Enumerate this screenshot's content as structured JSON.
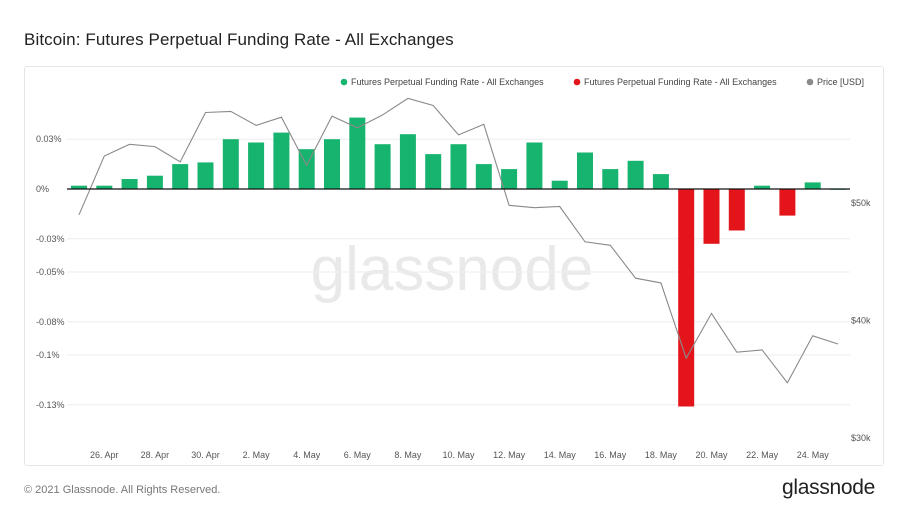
{
  "title": "Bitcoin: Futures Perpetual Funding Rate - All Exchanges",
  "watermark": "glassnode",
  "footer": {
    "copyright": "© 2021 Glassnode. All Rights Reserved.",
    "brand": "glassnode"
  },
  "colors": {
    "positive": "#16b46f",
    "negative": "#e3151a",
    "price": "#8a8a8a"
  },
  "chart_data": {
    "type": "bar",
    "title": "Bitcoin: Futures Perpetual Funding Rate - All Exchanges",
    "legend": [
      {
        "label": "Futures Perpetual Funding Rate - All Exchanges",
        "color": "#16b46f"
      },
      {
        "label": "Futures Perpetual Funding Rate - All Exchanges",
        "color": "#e3151a"
      },
      {
        "label": "Price [USD]",
        "color": "#8a8a8a"
      }
    ],
    "legend_position": "top-right",
    "x_tick_labels": [
      "26. Apr",
      "28. Apr",
      "30. Apr",
      "2. May",
      "4. May",
      "6. May",
      "8. May",
      "10. May",
      "12. May",
      "14. May",
      "16. May",
      "18. May",
      "20. May",
      "22. May",
      "24. May"
    ],
    "y_left": {
      "ticks": [
        0.03,
        0,
        -0.03,
        -0.05,
        -0.08,
        -0.1,
        -0.13
      ],
      "tick_labels": [
        "0.03%",
        "0%",
        "-0.03%",
        "-0.05%",
        "-0.08%",
        "-0.1%",
        "-0.13%"
      ],
      "range": [
        -0.13,
        0.05
      ]
    },
    "y_right": {
      "tick_values": [
        50000,
        40000,
        30000
      ],
      "tick_labels": [
        "$50k",
        "$40k",
        "$30k"
      ],
      "range": [
        30000,
        58000
      ]
    },
    "funding_rate_series": {
      "name": "Futures Perpetual Funding Rate - All Exchanges",
      "unit": "%",
      "dates": [
        "2021-04-25",
        "2021-04-26",
        "2021-04-27",
        "2021-04-28",
        "2021-04-29",
        "2021-04-30",
        "2021-05-01",
        "2021-05-02",
        "2021-05-03",
        "2021-05-04",
        "2021-05-05",
        "2021-05-06",
        "2021-05-07",
        "2021-05-08",
        "2021-05-09",
        "2021-05-10",
        "2021-05-11",
        "2021-05-12",
        "2021-05-13",
        "2021-05-14",
        "2021-05-15",
        "2021-05-16",
        "2021-05-17",
        "2021-05-18",
        "2021-05-19",
        "2021-05-20",
        "2021-05-21",
        "2021-05-22",
        "2021-05-23",
        "2021-05-24",
        "2021-05-25"
      ],
      "values": [
        0.002,
        0.002,
        0.006,
        0.008,
        0.015,
        0.016,
        0.03,
        0.028,
        0.034,
        0.024,
        0.03,
        0.043,
        0.027,
        0.033,
        0.021,
        0.027,
        0.015,
        0.012,
        0.028,
        0.005,
        0.022,
        0.012,
        0.017,
        0.009,
        -0.131,
        -0.033,
        -0.025,
        0.002,
        -0.016,
        0.004,
        0.0
      ]
    },
    "price_series": {
      "name": "Price [USD]",
      "dates": [
        "2021-04-25",
        "2021-04-26",
        "2021-04-27",
        "2021-04-28",
        "2021-04-29",
        "2021-04-30",
        "2021-05-01",
        "2021-05-02",
        "2021-05-03",
        "2021-05-04",
        "2021-05-05",
        "2021-05-06",
        "2021-05-07",
        "2021-05-08",
        "2021-05-09",
        "2021-05-10",
        "2021-05-11",
        "2021-05-12",
        "2021-05-13",
        "2021-05-14",
        "2021-05-15",
        "2021-05-16",
        "2021-05-17",
        "2021-05-18",
        "2021-05-19",
        "2021-05-20",
        "2021-05-21",
        "2021-05-22",
        "2021-05-23",
        "2021-05-24",
        "2021-05-25"
      ],
      "values": [
        49000,
        54000,
        55000,
        54800,
        53500,
        57700,
        57800,
        56600,
        57300,
        53200,
        57400,
        56400,
        57500,
        58900,
        58300,
        55800,
        56700,
        49800,
        49600,
        49700,
        46700,
        46400,
        43600,
        43200,
        36800,
        40600,
        37300,
        37500,
        34700,
        38700,
        38000
      ]
    }
  }
}
